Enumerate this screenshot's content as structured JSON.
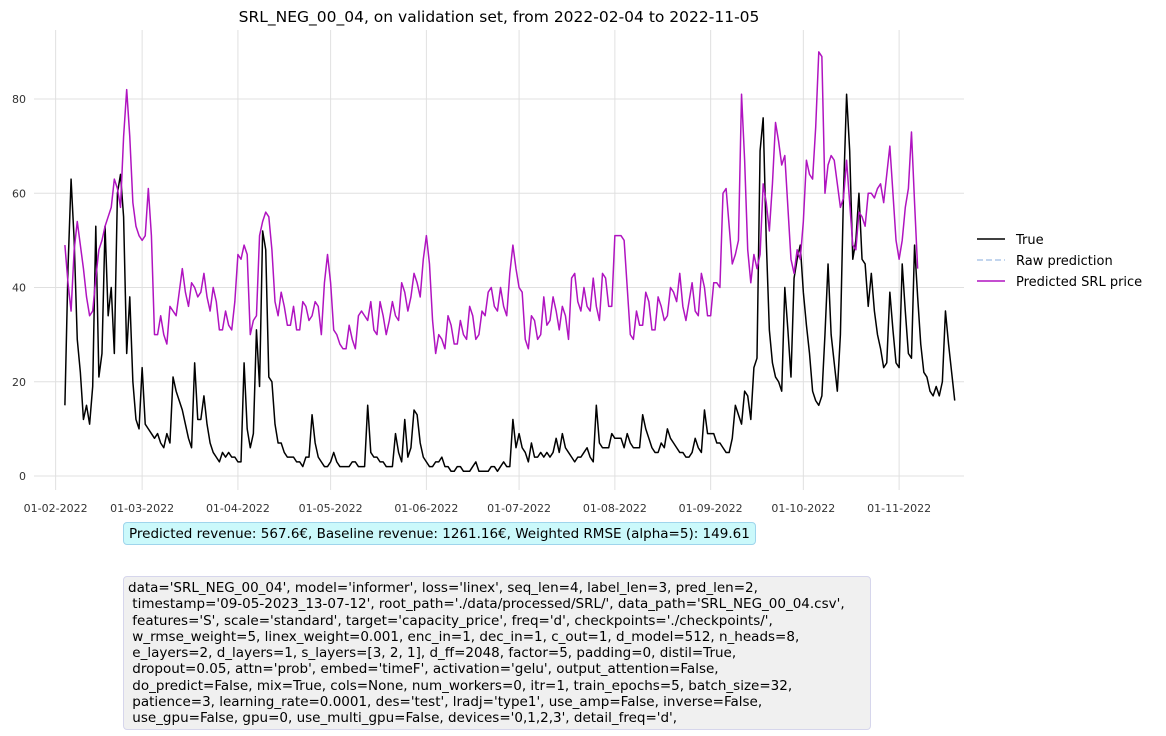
{
  "colors": {
    "true": "#000000",
    "raw": "#aec7e8",
    "predicted": "#b014c0"
  },
  "chart_data": {
    "type": "line",
    "title": "SRL_NEG_00_04, on validation set, from 2022-02-04 to 2022-11-05",
    "xlabel": "",
    "ylabel": "",
    "ylim": [
      0,
      90
    ],
    "xlim": [
      "2022-01-25",
      "2022-11-22"
    ],
    "grid": true,
    "legend_position": "right",
    "x_ticks": [
      "2022-02-01",
      "2022-03-01",
      "2022-04-01",
      "2022-05-01",
      "2022-06-01",
      "2022-07-01",
      "2022-08-01",
      "2022-09-01",
      "2022-10-01",
      "2022-11-01"
    ],
    "x_tick_labels": [
      "01-02-2022",
      "01-03-2022",
      "01-04-2022",
      "01-05-2022",
      "01-06-2022",
      "01-07-2022",
      "01-08-2022",
      "01-09-2022",
      "01-10-2022",
      "01-11-2022"
    ],
    "y_ticks": [
      0,
      20,
      40,
      60,
      80
    ],
    "y_tick_labels": [
      "0",
      "20",
      "40",
      "60",
      "80"
    ],
    "start_date": "2022-02-04",
    "series": [
      {
        "name": "True",
        "style": "solid",
        "color_key": "true",
        "values": [
          15,
          44,
          63,
          50,
          29,
          22,
          12,
          15,
          11,
          19,
          53,
          21,
          26,
          53,
          34,
          40,
          26,
          60,
          64,
          55,
          26,
          38,
          20,
          12,
          10,
          23,
          11,
          10,
          9,
          8,
          9,
          7,
          6,
          9,
          7,
          21,
          18,
          16,
          14,
          11,
          8,
          6,
          24,
          12,
          12,
          17,
          11,
          7,
          5,
          4,
          3,
          5,
          4,
          5,
          4,
          4,
          3,
          3,
          24,
          10,
          6,
          9,
          31,
          19,
          52,
          48,
          21,
          20,
          11,
          7,
          7,
          5,
          4,
          4,
          4,
          3,
          3,
          2,
          4,
          4,
          13,
          7,
          4,
          3,
          2,
          2,
          3,
          5,
          3,
          2,
          2,
          2,
          2,
          3,
          3,
          2,
          2,
          2,
          15,
          5,
          4,
          4,
          3,
          3,
          2,
          2,
          2,
          9,
          5,
          3,
          12,
          4,
          6,
          14,
          13,
          7,
          4,
          3,
          2,
          2,
          3,
          3,
          4,
          2,
          2,
          1,
          1,
          2,
          2,
          1,
          1,
          1,
          2,
          3,
          1,
          1,
          1,
          1,
          2,
          2,
          1,
          2,
          3,
          2,
          2,
          12,
          6,
          9,
          6,
          5,
          3,
          7,
          4,
          4,
          5,
          4,
          5,
          4,
          5,
          8,
          5,
          9,
          6,
          5,
          4,
          3,
          4,
          4,
          5,
          6,
          4,
          3,
          15,
          7,
          6,
          6,
          6,
          9,
          8,
          8,
          8,
          6,
          9,
          7,
          6,
          6,
          6,
          13,
          10,
          8,
          6,
          5,
          5,
          7,
          6,
          10,
          8,
          7,
          6,
          5,
          5,
          4,
          4,
          5,
          8,
          6,
          5,
          14,
          9,
          9,
          9,
          7,
          7,
          6,
          5,
          5,
          8,
          15,
          13,
          11,
          18,
          17,
          12,
          23,
          25,
          69,
          76,
          50,
          31,
          24,
          21,
          20,
          18,
          40,
          31,
          21,
          42,
          46,
          49,
          39,
          32,
          26,
          18,
          16,
          15,
          17,
          30,
          45,
          30,
          24,
          18,
          30,
          60,
          81,
          69,
          46,
          50,
          60,
          46,
          45,
          36,
          43,
          35,
          30,
          27,
          23,
          24,
          39,
          31,
          24,
          23,
          45,
          35,
          26,
          25,
          49,
          38,
          28,
          22,
          21,
          18,
          17,
          19,
          17,
          20,
          35,
          28,
          22,
          16
        ]
      },
      {
        "name": "Raw prediction",
        "style": "dashed",
        "color_key": "raw",
        "values": []
      },
      {
        "name": "Predicted SRL price",
        "style": "solid",
        "color_key": "predicted",
        "values": [
          49,
          41,
          35,
          48,
          54,
          49,
          44,
          38,
          34,
          35,
          42,
          48,
          50,
          53,
          55,
          57,
          63,
          61,
          57,
          72,
          82,
          72,
          58,
          53,
          51,
          50,
          51,
          61,
          51,
          30,
          30,
          34,
          30,
          28,
          36,
          35,
          34,
          39,
          44,
          39,
          36,
          41,
          40,
          38,
          39,
          43,
          38,
          35,
          40,
          37,
          31,
          31,
          35,
          32,
          31,
          37,
          47,
          46,
          49,
          47,
          30,
          33,
          34,
          51,
          54,
          56,
          55,
          48,
          37,
          34,
          39,
          36,
          32,
          32,
          36,
          31,
          31,
          37,
          36,
          33,
          34,
          37,
          36,
          30,
          41,
          47,
          41,
          31,
          30,
          28,
          27,
          27,
          32,
          29,
          27,
          34,
          35,
          34,
          33,
          37,
          31,
          30,
          37,
          34,
          30,
          33,
          37,
          34,
          33,
          41,
          39,
          35,
          38,
          43,
          41,
          38,
          46,
          51,
          45,
          33,
          26,
          30,
          29,
          27,
          34,
          32,
          28,
          28,
          33,
          30,
          29,
          36,
          34,
          29,
          30,
          35,
          34,
          39,
          40,
          36,
          35,
          40,
          36,
          34,
          43,
          49,
          44,
          40,
          39,
          29,
          27,
          34,
          33,
          29,
          30,
          38,
          32,
          33,
          38,
          35,
          31,
          36,
          34,
          29,
          42,
          43,
          37,
          35,
          40,
          36,
          35,
          42,
          36,
          33,
          43,
          42,
          36,
          36,
          51,
          51,
          51,
          50,
          40,
          30,
          29,
          35,
          32,
          32,
          39,
          37,
          31,
          31,
          38,
          36,
          33,
          34,
          40,
          39,
          37,
          43,
          36,
          33,
          37,
          41,
          35,
          34,
          43,
          40,
          34,
          34,
          41,
          41,
          40,
          60,
          61,
          53,
          45,
          47,
          50,
          81,
          67,
          48,
          41,
          47,
          44,
          47,
          62,
          58,
          52,
          62,
          75,
          71,
          66,
          68,
          57,
          46,
          43,
          48,
          46,
          54,
          67,
          64,
          63,
          74,
          90,
          89,
          60,
          66,
          68,
          67,
          62,
          57,
          59,
          67,
          58,
          49,
          48,
          56,
          55,
          53,
          60,
          60,
          59,
          61,
          62,
          58,
          64,
          70,
          60,
          50,
          46,
          50,
          57,
          61,
          73,
          58,
          44
        ]
      }
    ]
  },
  "info_text": "Predicted revenue: 567.6€, Baseline revenue: 1261.16€, Weighted RMSE (alpha=5): 149.61",
  "params_text": "data='SRL_NEG_00_04', model='informer', loss='linex', seq_len=4, label_len=3, pred_len=2,\n timestamp='09-05-2023_13-07-12', root_path='./data/processed/SRL/', data_path='SRL_NEG_00_04.csv',\n features='S', scale='standard', target='capacity_price', freq='d', checkpoints='./checkpoints/',\n w_rmse_weight=5, linex_weight=0.001, enc_in=1, dec_in=1, c_out=1, d_model=512, n_heads=8,\n e_layers=2, d_layers=1, s_layers=[3, 2, 1], d_ff=2048, factor=5, padding=0, distil=True,\n dropout=0.05, attn='prob', embed='timeF', activation='gelu', output_attention=False,\n do_predict=False, mix=True, cols=None, num_workers=0, itr=1, train_epochs=5, batch_size=32,\n patience=3, learning_rate=0.0001, des='test', lradj='type1', use_amp=False, inverse=False,\n use_gpu=False, gpu=0, use_multi_gpu=False, devices='0,1,2,3', detail_freq='d',"
}
